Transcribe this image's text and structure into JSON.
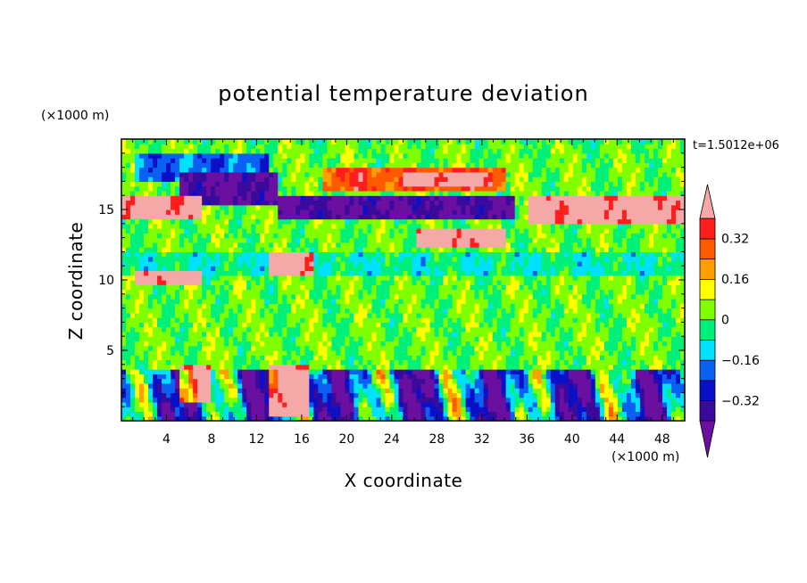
{
  "chart_data": {
    "type": "heatmap",
    "title": "potential temperature deviation",
    "xlabel": "X coordinate",
    "ylabel": "Z coordinate",
    "x_unit": "(×1000 m)",
    "y_unit": "(×1000 m)",
    "time_label": "t=1.5012e+06",
    "xlim": [
      0,
      50
    ],
    "ylim": [
      0,
      20
    ],
    "x_ticks": [
      4,
      8,
      12,
      16,
      20,
      24,
      28,
      32,
      36,
      40,
      44,
      48
    ],
    "y_ticks": [
      5,
      10,
      15
    ],
    "colorbar": {
      "levels": [
        -0.4,
        -0.32,
        -0.24,
        -0.16,
        -0.08,
        0,
        0.08,
        0.16,
        0.24,
        0.32,
        0.4
      ],
      "labels": [
        "0.32",
        "0.16",
        "0",
        "−0.16",
        "−0.32"
      ],
      "label_values": [
        0.32,
        0.16,
        0,
        -0.16,
        -0.32
      ],
      "colors": [
        "#6a0fa0",
        "#3a0a9c",
        "#0a10c8",
        "#0a60f0",
        "#00e0ff",
        "#00f07a",
        "#80ff00",
        "#ffff00",
        "#ffa000",
        "#ff5a00",
        "#ff1e1e",
        "#f5a8a8"
      ]
    },
    "field": {
      "description_regions": [
        {
          "xr": [
            0,
            50
          ],
          "zr": [
            3.7,
            19.5
          ],
          "value": 0.02
        },
        {
          "xr": [
            0,
            50
          ],
          "zr": [
            0,
            3.7
          ],
          "value": -0.2
        },
        {
          "xr": [
            0,
            50
          ],
          "zr": [
            10.5,
            12
          ],
          "value": -0.07
        },
        {
          "xr": [
            1,
            13
          ],
          "zr": [
            17,
            19
          ],
          "value": -0.2
        },
        {
          "xr": [
            5,
            14
          ],
          "zr": [
            15.5,
            17.5
          ],
          "value": -0.4
        },
        {
          "xr": [
            14,
            27
          ],
          "zr": [
            14.2,
            16
          ],
          "value": -0.4
        },
        {
          "xr": [
            24,
            35
          ],
          "zr": [
            14.5,
            16
          ],
          "value": -0.4
        },
        {
          "xr": [
            18,
            34
          ],
          "zr": [
            16.5,
            18
          ],
          "value": 0.3
        },
        {
          "xr": [
            25,
            33
          ],
          "zr": [
            16.8,
            17.7
          ],
          "value": 0.45
        },
        {
          "xr": [
            36,
            50
          ],
          "zr": [
            14,
            16
          ],
          "value": 0.45
        },
        {
          "xr": [
            0,
            7
          ],
          "zr": [
            14.5,
            16
          ],
          "value": 0.45
        },
        {
          "xr": [
            26,
            34
          ],
          "zr": [
            12.5,
            13.8
          ],
          "value": 0.45
        },
        {
          "xr": [
            13,
            17
          ],
          "zr": [
            10.2,
            12
          ],
          "value": 0.45
        },
        {
          "xr": [
            1,
            7
          ],
          "zr": [
            9.8,
            10.5
          ],
          "value": 0.45
        },
        {
          "xr": [
            5,
            8
          ],
          "zr": [
            1.5,
            4
          ],
          "value": 0.45
        },
        {
          "xr": [
            13,
            16.5
          ],
          "zr": [
            0.5,
            4
          ],
          "value": 0.45
        }
      ]
    }
  }
}
